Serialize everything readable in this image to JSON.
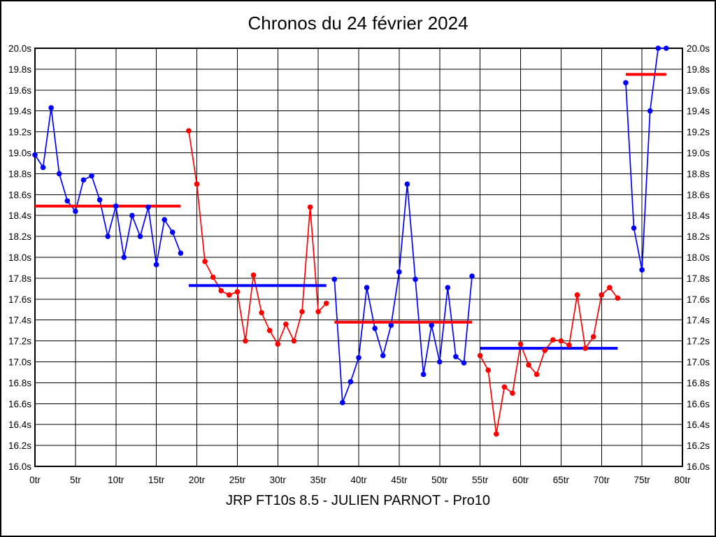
{
  "chart_data": {
    "type": "line",
    "title": "Chronos du 24 février 2024",
    "caption": "JRP FT10s 8.5 - JULIEN PARNOT - Pro10",
    "xlabel": "",
    "ylabel": "",
    "x_unit": "tr",
    "y_unit": "s",
    "xlim": [
      0,
      80
    ],
    "ylim": [
      16.0,
      20.0
    ],
    "x_tick_step": 5,
    "y_tick_step": 0.2,
    "grid": true,
    "legend": "none",
    "y_labels_both_sides": true,
    "colors": {
      "blue": "#0000ff",
      "red": "#ff0000",
      "grid": "#000000",
      "background": "#ffffff"
    },
    "x_tick_labels": [
      "0tr",
      "5tr",
      "10tr",
      "15tr",
      "20tr",
      "25tr",
      "30tr",
      "35tr",
      "40tr",
      "45tr",
      "50tr",
      "55tr",
      "60tr",
      "65tr",
      "70tr",
      "75tr",
      "80tr"
    ],
    "y_tick_labels": [
      "20.0s",
      "19.8s",
      "19.6s",
      "19.4s",
      "19.2s",
      "19.0s",
      "18.8s",
      "18.6s",
      "18.4s",
      "18.2s",
      "18.0s",
      "17.8s",
      "17.6s",
      "17.4s",
      "17.2s",
      "17.0s",
      "16.8s",
      "16.6s",
      "16.4s",
      "16.2s",
      "16.0s"
    ],
    "segments": [
      {
        "name": "stint-1",
        "color": "#0000ff",
        "start_lap": 0,
        "values": [
          18.98,
          18.86,
          19.43,
          18.8,
          18.54,
          18.44,
          18.74,
          18.78,
          18.55,
          18.2,
          18.49,
          18.0,
          18.4,
          18.2,
          18.48,
          17.93,
          18.36,
          18.24,
          18.04
        ],
        "avg": 18.49,
        "avg_color": "#ff0000"
      },
      {
        "name": "stint-2",
        "color": "#ff0000",
        "start_lap": 19,
        "values": [
          19.21,
          18.7,
          17.96,
          17.81,
          17.68,
          17.64,
          17.67,
          17.2,
          17.83,
          17.47,
          17.3,
          17.17,
          17.36,
          17.2,
          17.48,
          18.48,
          17.48,
          17.56
        ],
        "avg": 17.73,
        "avg_color": "#0000ff"
      },
      {
        "name": "stint-3",
        "color": "#0000ff",
        "start_lap": 37,
        "values": [
          17.79,
          16.61,
          16.81,
          17.04,
          17.71,
          17.32,
          17.06,
          17.35,
          17.86,
          18.7,
          17.79,
          16.88,
          17.35,
          17.0,
          17.71,
          17.05,
          16.99,
          17.82
        ],
        "avg": 17.38,
        "avg_color": "#ff0000"
      },
      {
        "name": "stint-4",
        "color": "#ff0000",
        "start_lap": 55,
        "values": [
          17.06,
          16.92,
          16.31,
          16.76,
          16.7,
          17.17,
          16.97,
          16.88,
          17.11,
          17.21,
          17.2,
          17.16,
          17.64,
          17.13,
          17.24,
          17.64,
          17.71,
          17.61
        ],
        "avg": 17.13,
        "avg_color": "#0000ff"
      },
      {
        "name": "stint-5",
        "color": "#0000ff",
        "start_lap": 73,
        "values": [
          19.67,
          18.28,
          17.88,
          19.4,
          20.0,
          20.0
        ],
        "avg": 19.75,
        "avg_color": "#ff0000"
      }
    ]
  }
}
